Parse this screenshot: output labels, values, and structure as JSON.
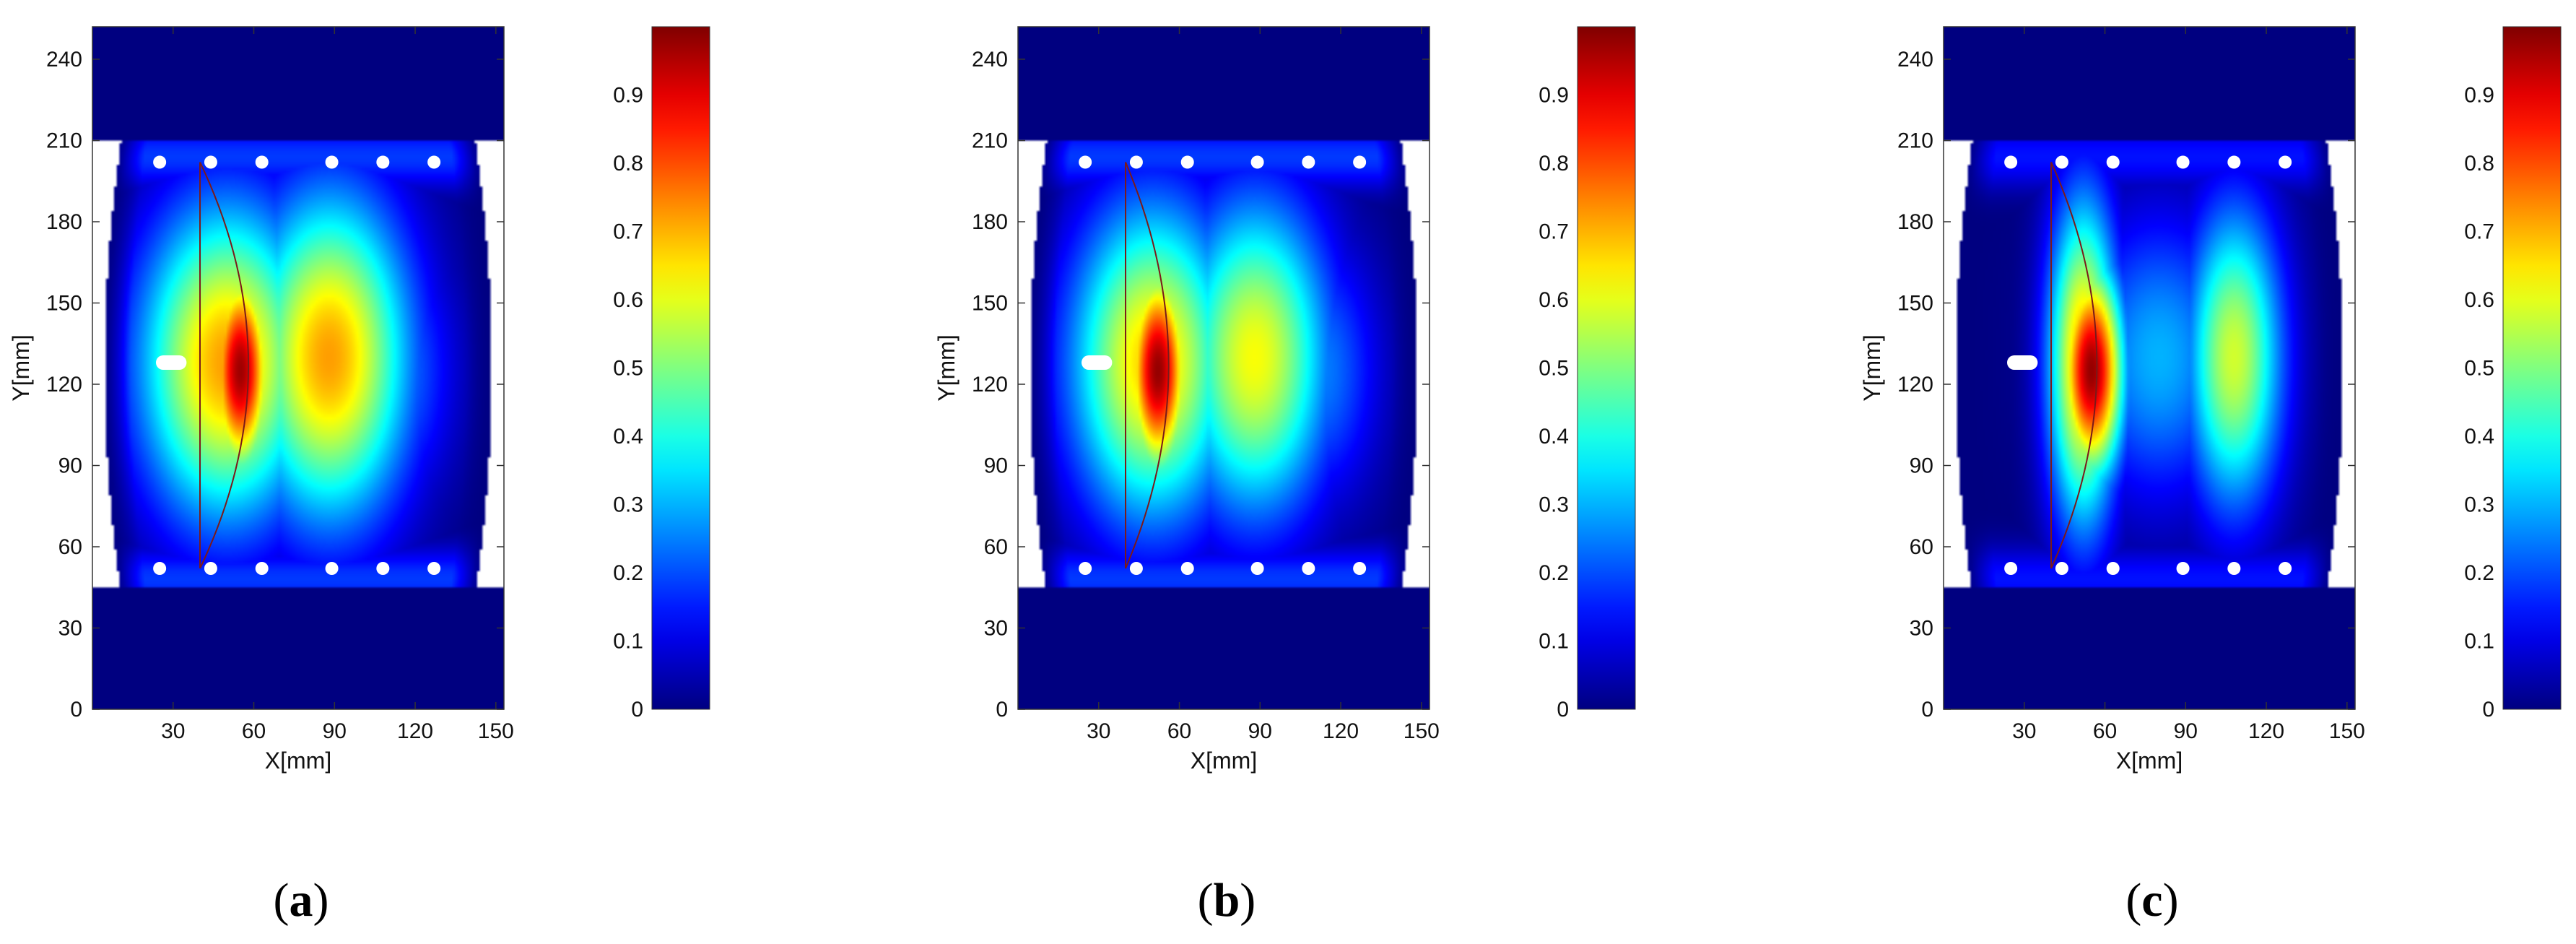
{
  "chart_data": [
    {
      "type": "heatmap",
      "panel_label": "(a)",
      "xlabel": "X[mm]",
      "ylabel": "Y[mm]",
      "xlim": [
        0,
        153
      ],
      "ylim": [
        0,
        252
      ],
      "x_ticks": [
        30,
        60,
        90,
        120,
        150
      ],
      "y_ticks": [
        0,
        30,
        60,
        90,
        120,
        150,
        180,
        210,
        240
      ],
      "colorbar": {
        "range": [
          0,
          1
        ],
        "ticks": [
          0,
          0.1,
          0.2,
          0.3,
          0.4,
          0.5,
          0.6,
          0.7,
          0.8,
          0.9
        ],
        "colormap": "jet"
      },
      "notch": {
        "x_end": 35,
        "y": 128
      },
      "outer_fringe": 0.18,
      "peak": {
        "x": 55,
        "y": 125,
        "value": 0.97
      },
      "background": [
        {
          "x": 50,
          "y": 128,
          "sx": 32,
          "sy": 58,
          "value": 0.72
        },
        {
          "x": 88,
          "y": 130,
          "sx": 30,
          "sy": 60,
          "value": 0.72
        },
        {
          "x": 112,
          "y": 125,
          "sx": 22,
          "sy": 48,
          "value": 0.25
        }
      ],
      "crack_front": {
        "x_line": 40,
        "y_top": 202,
        "y_bottom": 52,
        "x_apex": 58
      },
      "holes_top": [
        [
          25,
          202
        ],
        [
          44,
          202
        ],
        [
          63,
          202
        ],
        [
          89,
          202
        ],
        [
          108,
          202
        ],
        [
          127,
          202
        ]
      ],
      "holes_bottom": [
        [
          25,
          52
        ],
        [
          44,
          52
        ],
        [
          63,
          52
        ],
        [
          89,
          52
        ],
        [
          108,
          52
        ],
        [
          127,
          52
        ]
      ]
    },
    {
      "type": "heatmap",
      "panel_label": "(b)",
      "xlabel": "X[mm]",
      "ylabel": "Y[mm]",
      "xlim": [
        0,
        153
      ],
      "ylim": [
        0,
        252
      ],
      "x_ticks": [
        30,
        60,
        90,
        120,
        150
      ],
      "y_ticks": [
        0,
        30,
        60,
        90,
        120,
        150,
        180,
        210,
        240
      ],
      "colorbar": {
        "range": [
          0,
          1
        ],
        "ticks": [
          0,
          0.1,
          0.2,
          0.3,
          0.4,
          0.5,
          0.6,
          0.7,
          0.8,
          0.9
        ],
        "colormap": "jet"
      },
      "notch": {
        "x_end": 35,
        "y": 128
      },
      "outer_fringe": 0.18,
      "peak": {
        "x": 52,
        "y": 125,
        "value": 0.98
      },
      "background": [
        {
          "x": 50,
          "y": 128,
          "sx": 30,
          "sy": 58,
          "value": 0.68
        },
        {
          "x": 88,
          "y": 130,
          "sx": 28,
          "sy": 58,
          "value": 0.62
        },
        {
          "x": 112,
          "y": 125,
          "sx": 22,
          "sy": 48,
          "value": 0.25
        }
      ],
      "crack_front": {
        "x_line": 40,
        "y_top": 202,
        "y_bottom": 52,
        "x_apex": 56
      },
      "holes_top": [
        [
          25,
          202
        ],
        [
          44,
          202
        ],
        [
          63,
          202
        ],
        [
          89,
          202
        ],
        [
          108,
          202
        ],
        [
          127,
          202
        ]
      ],
      "holes_bottom": [
        [
          25,
          52
        ],
        [
          44,
          52
        ],
        [
          63,
          52
        ],
        [
          89,
          52
        ],
        [
          108,
          52
        ],
        [
          127,
          52
        ]
      ]
    },
    {
      "type": "heatmap",
      "panel_label": "(c)",
      "xlabel": "X[mm]",
      "ylabel": "Y[mm]",
      "xlim": [
        0,
        153
      ],
      "ylim": [
        0,
        252
      ],
      "x_ticks": [
        30,
        60,
        90,
        120,
        150
      ],
      "y_ticks": [
        0,
        30,
        60,
        90,
        120,
        150,
        180,
        210,
        240
      ],
      "colorbar": {
        "range": [
          0,
          1
        ],
        "ticks": [
          0,
          0.1,
          0.2,
          0.3,
          0.4,
          0.5,
          0.6,
          0.7,
          0.8,
          0.9
        ],
        "colormap": "jet"
      },
      "notch": {
        "x_end": 35,
        "y": 128
      },
      "outer_fringe": 0.14,
      "peak": {
        "x": 55,
        "y": 125,
        "value": 0.98
      },
      "background": [
        {
          "x": 52,
          "y": 128,
          "sx": 13,
          "sy": 60,
          "value": 0.72
        },
        {
          "x": 108,
          "y": 130,
          "sx": 18,
          "sy": 55,
          "value": 0.58
        },
        {
          "x": 80,
          "y": 130,
          "sx": 30,
          "sy": 52,
          "value": 0.3
        }
      ],
      "crack_front": {
        "x_line": 40,
        "y_top": 202,
        "y_bottom": 52,
        "x_apex": 57
      },
      "holes_top": [
        [
          25,
          202
        ],
        [
          44,
          202
        ],
        [
          63,
          202
        ],
        [
          89,
          202
        ],
        [
          108,
          202
        ],
        [
          127,
          202
        ]
      ],
      "holes_bottom": [
        [
          25,
          52
        ],
        [
          44,
          52
        ],
        [
          63,
          52
        ],
        [
          89,
          52
        ],
        [
          108,
          52
        ],
        [
          127,
          52
        ]
      ]
    }
  ]
}
